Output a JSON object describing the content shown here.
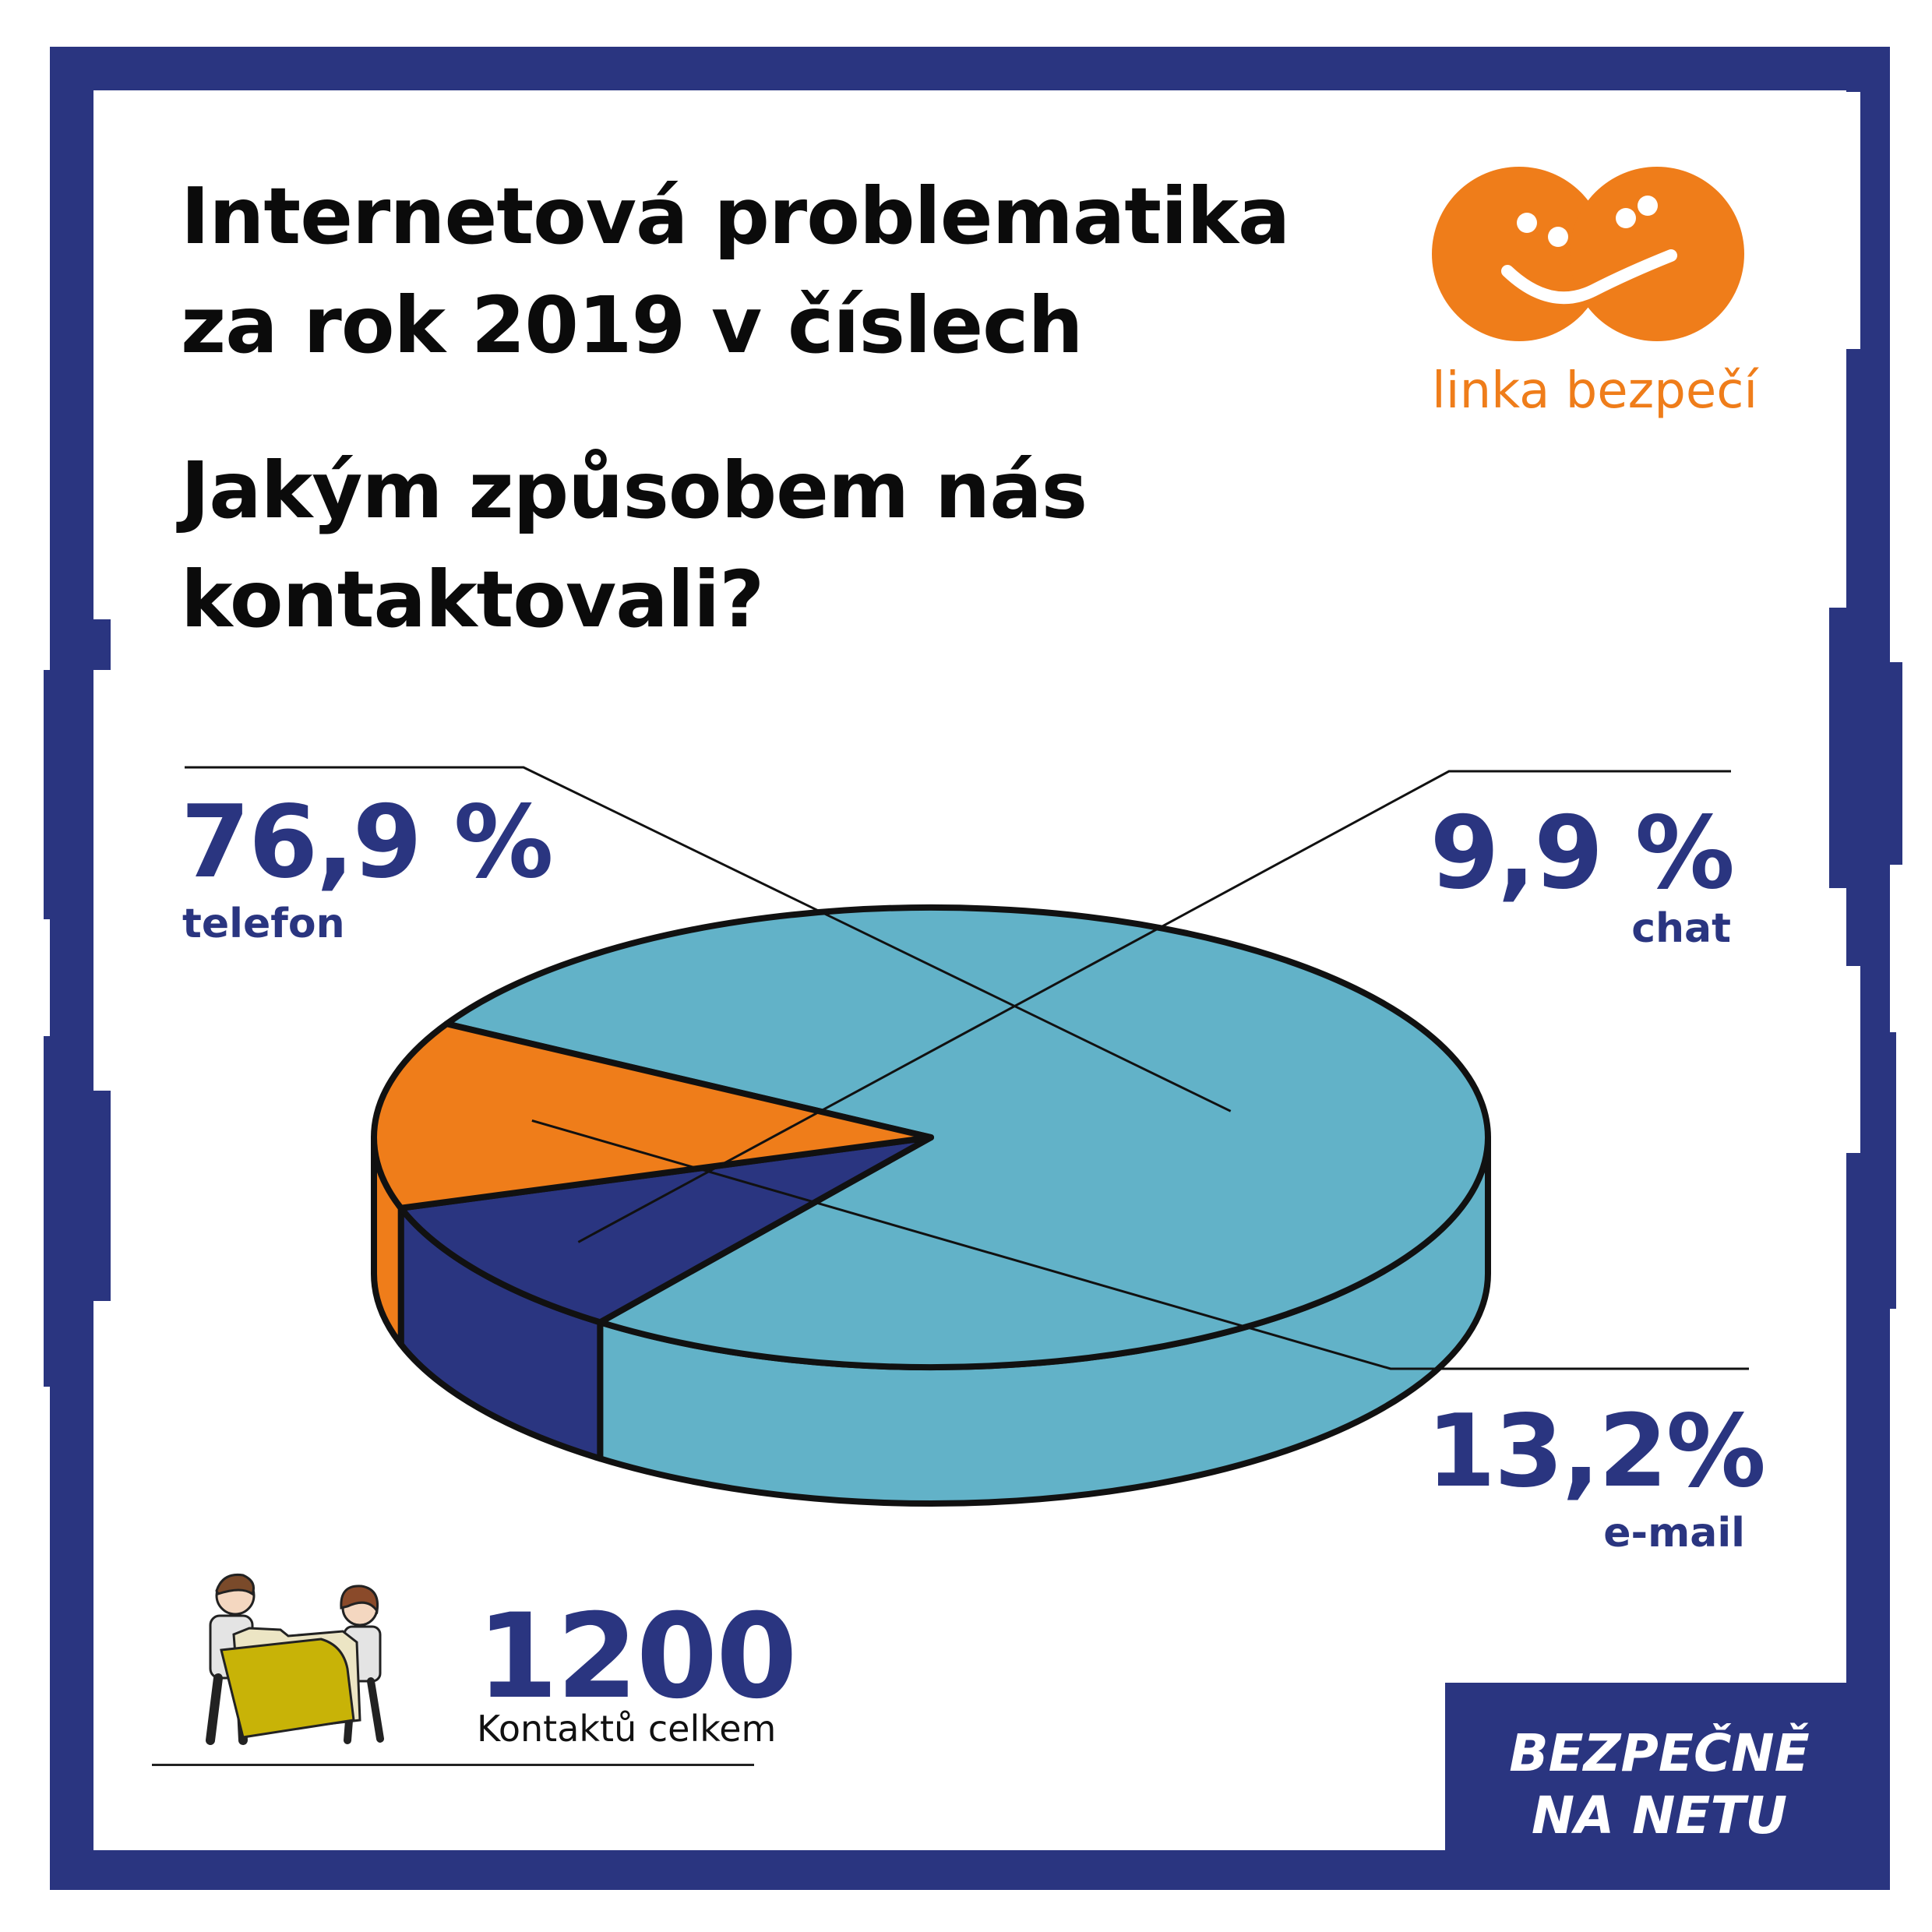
{
  "header": {
    "title_line1": "Internetová problematika",
    "title_line2": "za rok 2019 v číslech",
    "question_line1": "Jakým způsobem nás",
    "question_line2": "kontaktovali?"
  },
  "logo": {
    "text": "linka bezpečí",
    "icon": "smiling-faces-logo-icon",
    "color": "#ef7d1a"
  },
  "chart_data": {
    "type": "pie",
    "title": "",
    "categories": [
      "telefon",
      "chat",
      "e-mail"
    ],
    "values": [
      76.9,
      9.9,
      13.2
    ],
    "value_labels": [
      "76,9 %",
      "9,9 %",
      "13,2%"
    ],
    "colors": [
      "#62b2c8",
      "#2a3580",
      "#ef7d1a"
    ],
    "legend": "none"
  },
  "summary": {
    "total_value": "1200",
    "total_label": "Kontaktů celkem",
    "illustration": "two-people-holding-folder-icon"
  },
  "badge": {
    "line1": "BEZPEČNĚ",
    "line2": "NA NETU"
  },
  "colors": {
    "navy": "#2a3580",
    "teal": "#62b2c8",
    "orange": "#ef7d1a",
    "folder": "#c8b307"
  }
}
